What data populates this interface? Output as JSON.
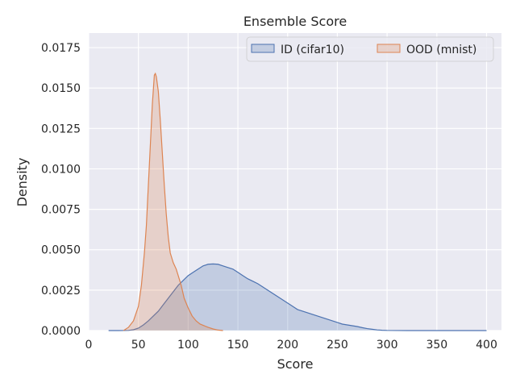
{
  "chart_data": {
    "type": "area",
    "title": "Ensemble Score",
    "xlabel": "Score",
    "ylabel": "Density",
    "xlim": [
      0,
      415
    ],
    "ylim": [
      0,
      0.0184
    ],
    "x_ticks": [
      0,
      50,
      100,
      150,
      200,
      250,
      300,
      350,
      400
    ],
    "x_tick_labels": [
      "0",
      "50",
      "100",
      "150",
      "200",
      "250",
      "300",
      "350",
      "400"
    ],
    "y_ticks": [
      0.0,
      0.0025,
      0.005,
      0.0075,
      0.01,
      0.0125,
      0.015,
      0.0175
    ],
    "y_tick_labels": [
      "0.0000",
      "0.0025",
      "0.0050",
      "0.0075",
      "0.0100",
      "0.0125",
      "0.0150",
      "0.0175"
    ],
    "grid": true,
    "legend_position": "top-right",
    "series": [
      {
        "name": "ID (cifar10)",
        "color": "#4c72b0",
        "points": [
          [
            20,
            0
          ],
          [
            30,
            0
          ],
          [
            40,
            1e-05
          ],
          [
            45,
            5e-05
          ],
          [
            50,
            0.00015
          ],
          [
            55,
            0.00035
          ],
          [
            60,
            0.0006
          ],
          [
            65,
            0.0009
          ],
          [
            70,
            0.0012
          ],
          [
            75,
            0.0016
          ],
          [
            80,
            0.002
          ],
          [
            85,
            0.0024
          ],
          [
            90,
            0.0028
          ],
          [
            95,
            0.0031
          ],
          [
            100,
            0.0034
          ],
          [
            105,
            0.0036
          ],
          [
            110,
            0.0038
          ],
          [
            115,
            0.004
          ],
          [
            120,
            0.0041
          ],
          [
            125,
            0.00412
          ],
          [
            130,
            0.0041
          ],
          [
            135,
            0.004
          ],
          [
            140,
            0.0039
          ],
          [
            145,
            0.0038
          ],
          [
            150,
            0.0036
          ],
          [
            155,
            0.0034
          ],
          [
            160,
            0.0032
          ],
          [
            165,
            0.00305
          ],
          [
            170,
            0.0029
          ],
          [
            175,
            0.0027
          ],
          [
            180,
            0.0025
          ],
          [
            185,
            0.0023
          ],
          [
            190,
            0.0021
          ],
          [
            195,
            0.0019
          ],
          [
            200,
            0.0017
          ],
          [
            205,
            0.0015
          ],
          [
            210,
            0.0013
          ],
          [
            215,
            0.0012
          ],
          [
            220,
            0.0011
          ],
          [
            225,
            0.001
          ],
          [
            230,
            0.0009
          ],
          [
            235,
            0.0008
          ],
          [
            240,
            0.0007
          ],
          [
            245,
            0.0006
          ],
          [
            250,
            0.0005
          ],
          [
            255,
            0.0004
          ],
          [
            260,
            0.00035
          ],
          [
            265,
            0.0003
          ],
          [
            270,
            0.00025
          ],
          [
            275,
            0.00018
          ],
          [
            280,
            0.00012
          ],
          [
            285,
            8e-05
          ],
          [
            290,
            4e-05
          ],
          [
            295,
            2e-05
          ],
          [
            300,
            1e-05
          ],
          [
            320,
            0
          ],
          [
            350,
            0
          ],
          [
            380,
            0
          ],
          [
            400,
            0
          ]
        ]
      },
      {
        "name": "OOD (mnist)",
        "color": "#dd8452",
        "points": [
          [
            35,
            0
          ],
          [
            40,
            0.0002
          ],
          [
            45,
            0.0006
          ],
          [
            50,
            0.0015
          ],
          [
            53,
            0.0028
          ],
          [
            56,
            0.0048
          ],
          [
            58,
            0.0065
          ],
          [
            60,
            0.009
          ],
          [
            62,
            0.0115
          ],
          [
            64,
            0.014
          ],
          [
            66,
            0.0158
          ],
          [
            67,
            0.0159
          ],
          [
            68,
            0.0157
          ],
          [
            70,
            0.0148
          ],
          [
            72,
            0.013
          ],
          [
            74,
            0.011
          ],
          [
            76,
            0.009
          ],
          [
            78,
            0.0072
          ],
          [
            80,
            0.0058
          ],
          [
            82,
            0.0048
          ],
          [
            85,
            0.0042
          ],
          [
            88,
            0.0038
          ],
          [
            90,
            0.0034
          ],
          [
            93,
            0.0028
          ],
          [
            96,
            0.002
          ],
          [
            100,
            0.0014
          ],
          [
            104,
            0.0009
          ],
          [
            108,
            0.0006
          ],
          [
            112,
            0.0004
          ],
          [
            116,
            0.0003
          ],
          [
            120,
            0.0002
          ],
          [
            125,
            0.0001
          ],
          [
            130,
            3e-05
          ],
          [
            135,
            0
          ]
        ]
      }
    ]
  }
}
